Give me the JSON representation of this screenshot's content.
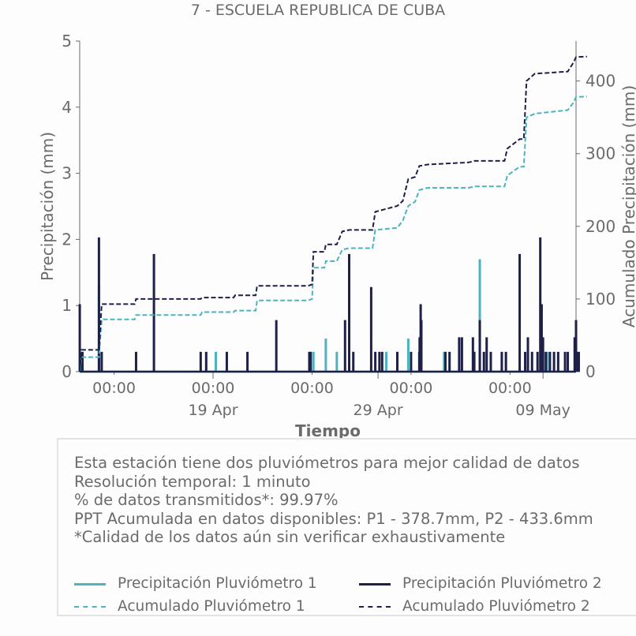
{
  "title": "7 - ESCUELA REPUBLICA DE CUBA",
  "info_lines": [
    "Esta estación tiene dos pluviómetros para mejor calidad de datos",
    "Resolución temporal: 1 minuto",
    "% de datos transmitidos*: 99.97%",
    "PPT Acumulada en datos disponibles: P1 - 378.7mm, P2 - 433.6mm",
    "*Calidad de los datos aún sin verificar exhaustivamente"
  ],
  "legend": [
    {
      "label": "Precipitación Pluviómetro 1",
      "color": "#4bb4bf",
      "dashed": false
    },
    {
      "label": "Precipitación Pluviómetro 2",
      "color": "#1e2047",
      "dashed": false
    },
    {
      "label": "Acumulado Pluviómetro 1",
      "color": "#4bb4bf",
      "dashed": true
    },
    {
      "label": "Acumulado Pluviómetro 2",
      "color": "#1e2047",
      "dashed": true
    }
  ],
  "colors": {
    "p1": "#4bb4bf",
    "p2": "#1e2047",
    "axis": "#6b6b6b",
    "text": "#6b6b6b"
  },
  "chart_data": {
    "type": "line",
    "title": "7 - ESCUELA REPUBLICA DE CUBA",
    "xlabel": "Tiempo",
    "ylabel": "Precipitación (mm)",
    "y2label": "Acumulado Precipitación (mm)",
    "xlim": [
      "2025-04-10T22:00",
      "2025-05-11T00:00"
    ],
    "ylim": [
      0,
      5
    ],
    "y2lim": [
      0,
      455
    ],
    "yticks": [
      0,
      1,
      2,
      3,
      4,
      5
    ],
    "y2ticks": [
      0,
      100,
      200,
      300,
      400
    ],
    "x_minor_ticks": [
      {
        "t": "2025-04-13T00:00",
        "label": "00:00"
      },
      {
        "t": "2025-04-19T00:00",
        "label": "00:00"
      },
      {
        "t": "2025-04-25T00:00",
        "label": "00:00"
      },
      {
        "t": "2025-05-01T00:00",
        "label": "00:00"
      },
      {
        "t": "2025-05-07T00:00",
        "label": "00:00"
      }
    ],
    "x_major_ticks": [
      {
        "t": "2025-04-19T00:00",
        "label": "19 Apr"
      },
      {
        "t": "2025-04-29T00:00",
        "label": "29 Apr"
      },
      {
        "t": "2025-05-09T00:00",
        "label": "09 May"
      }
    ],
    "grid": false,
    "series": [
      {
        "name": "Precipitación Pluviómetro 1",
        "axis": "left",
        "style": "solid",
        "points": [
          [
            "2025-04-11T01:00",
            0.3
          ],
          [
            "2025-04-12T02:00",
            1.3
          ],
          [
            "2025-04-19T04:00",
            0.3
          ],
          [
            "2025-04-25T02:00",
            0.3
          ],
          [
            "2025-04-25T20:00",
            0.5
          ],
          [
            "2025-04-26T12:00",
            0.3
          ],
          [
            "2025-04-29T12:00",
            0.3
          ],
          [
            "2025-04-30T20:00",
            0.5
          ],
          [
            "2025-05-03T00:00",
            0.3
          ],
          [
            "2025-05-05T04:00",
            1.7
          ],
          [
            "2025-05-09T06:00",
            0.3
          ]
        ]
      },
      {
        "name": "Precipitación Pluviómetro 2",
        "axis": "left",
        "style": "solid",
        "points": [
          [
            "2025-04-10T22:06",
            1.02
          ],
          [
            "2025-04-11T02:00",
            0.3
          ],
          [
            "2025-04-12T02:00",
            2.03
          ],
          [
            "2025-04-12T06:00",
            0.3
          ],
          [
            "2025-04-14T08:00",
            0.3
          ],
          [
            "2025-04-15T10:00",
            1.78
          ],
          [
            "2025-04-18T06:00",
            0.3
          ],
          [
            "2025-04-18T14:00",
            0.3
          ],
          [
            "2025-04-19T20:00",
            0.3
          ],
          [
            "2025-04-21T02:00",
            0.3
          ],
          [
            "2025-04-22T20:00",
            0.78
          ],
          [
            "2025-04-24T20:00",
            0.3
          ],
          [
            "2025-04-24T22:00",
            0.3
          ],
          [
            "2025-04-27T00:00",
            0.78
          ],
          [
            "2025-04-27T06:00",
            1.78
          ],
          [
            "2025-04-27T12:00",
            0.3
          ],
          [
            "2025-04-28T14:00",
            1.28
          ],
          [
            "2025-04-28T20:00",
            0.3
          ],
          [
            "2025-04-29T02:00",
            0.3
          ],
          [
            "2025-04-29T06:00",
            0.3
          ],
          [
            "2025-04-30T04:00",
            0.3
          ],
          [
            "2025-05-01T00:00",
            0.3
          ],
          [
            "2025-05-01T12:00",
            0.3
          ],
          [
            "2025-05-01T12:30",
            0.52
          ],
          [
            "2025-05-01T14:00",
            1.02
          ],
          [
            "2025-05-01T15:00",
            0.78
          ],
          [
            "2025-05-03T02:00",
            0.3
          ],
          [
            "2025-05-03T08:00",
            0.3
          ],
          [
            "2025-05-03T22:00",
            0.52
          ],
          [
            "2025-05-04T02:00",
            0.52
          ],
          [
            "2025-05-04T18:00",
            0.52
          ],
          [
            "2025-05-04T20:00",
            0.3
          ],
          [
            "2025-05-05T04:00",
            0.78
          ],
          [
            "2025-05-05T10:00",
            0.3
          ],
          [
            "2025-05-05T14:00",
            0.52
          ],
          [
            "2025-05-05T20:00",
            0.3
          ],
          [
            "2025-05-06T12:00",
            0.3
          ],
          [
            "2025-05-06T18:00",
            0.3
          ],
          [
            "2025-05-07T14:00",
            1.78
          ],
          [
            "2025-05-07T22:00",
            0.3
          ],
          [
            "2025-05-08T02:00",
            0.52
          ],
          [
            "2025-05-08T08:00",
            0.3
          ],
          [
            "2025-05-08T16:00",
            0.3
          ],
          [
            "2025-05-08T20:00",
            2.03
          ],
          [
            "2025-05-08T22:00",
            1.02
          ],
          [
            "2025-05-09T00:00",
            0.52
          ],
          [
            "2025-05-09T04:00",
            0.3
          ],
          [
            "2025-05-09T10:00",
            0.3
          ],
          [
            "2025-05-09T16:00",
            0.3
          ],
          [
            "2025-05-09T22:00",
            0.3
          ],
          [
            "2025-05-10T08:00",
            0.3
          ],
          [
            "2025-05-10T12:00",
            0.3
          ],
          [
            "2025-05-10T22:00",
            0.52
          ],
          [
            "2025-05-11T00:00",
            0.78
          ],
          [
            "2025-05-11T02:00",
            0.3
          ],
          [
            "2025-05-11T04:00",
            0.3
          ]
        ]
      },
      {
        "name": "Acumulado Pluviómetro 1",
        "axis": "right",
        "style": "dashed",
        "points": [
          [
            "2025-04-10T22:00",
            0
          ],
          [
            "2025-04-11T01:00",
            20
          ],
          [
            "2025-04-12T02:00",
            20
          ],
          [
            "2025-04-12T06:00",
            72
          ],
          [
            "2025-04-14T06:00",
            72
          ],
          [
            "2025-04-14T08:00",
            78
          ],
          [
            "2025-04-18T06:00",
            78
          ],
          [
            "2025-04-18T08:00",
            82
          ],
          [
            "2025-04-20T06:00",
            82
          ],
          [
            "2025-04-20T08:00",
            84
          ],
          [
            "2025-04-21T14:00",
            84
          ],
          [
            "2025-04-21T16:00",
            98
          ],
          [
            "2025-04-24T18:00",
            98
          ],
          [
            "2025-04-25T00:00",
            100
          ],
          [
            "2025-04-25T02:00",
            143
          ],
          [
            "2025-04-25T18:00",
            143
          ],
          [
            "2025-04-25T20:00",
            152
          ],
          [
            "2025-04-26T12:00",
            152
          ],
          [
            "2025-04-26T20:00",
            168
          ],
          [
            "2025-04-27T06:00",
            170
          ],
          [
            "2025-04-28T16:00",
            170
          ],
          [
            "2025-04-28T20:00",
            195
          ],
          [
            "2025-04-30T04:00",
            198
          ],
          [
            "2025-04-30T12:00",
            208
          ],
          [
            "2025-04-30T20:00",
            228
          ],
          [
            "2025-05-01T06:00",
            234
          ],
          [
            "2025-05-01T12:00",
            250
          ],
          [
            "2025-05-02T00:00",
            253
          ],
          [
            "2025-05-04T12:00",
            253
          ],
          [
            "2025-05-04T20:00",
            255
          ],
          [
            "2025-05-06T16:00",
            255
          ],
          [
            "2025-05-06T20:00",
            270
          ],
          [
            "2025-05-07T14:00",
            282
          ],
          [
            "2025-05-07T20:00",
            282
          ],
          [
            "2025-05-08T00:00",
            350
          ],
          [
            "2025-05-08T12:00",
            355
          ],
          [
            "2025-05-10T12:00",
            360
          ],
          [
            "2025-05-10T20:00",
            370
          ],
          [
            "2025-05-11T00:00",
            378
          ],
          [
            "2025-05-11T16:00",
            378.7
          ]
        ]
      },
      {
        "name": "Acumulado Pluviómetro 2",
        "axis": "right",
        "style": "dashed",
        "points": [
          [
            "2025-04-10T22:00",
            0
          ],
          [
            "2025-04-11T01:00",
            30
          ],
          [
            "2025-04-12T02:00",
            30
          ],
          [
            "2025-04-12T06:00",
            93
          ],
          [
            "2025-04-14T06:00",
            93
          ],
          [
            "2025-04-14T08:00",
            100
          ],
          [
            "2025-04-18T06:00",
            100
          ],
          [
            "2025-04-18T08:00",
            102
          ],
          [
            "2025-04-20T06:00",
            102
          ],
          [
            "2025-04-20T08:00",
            105
          ],
          [
            "2025-04-21T14:00",
            105
          ],
          [
            "2025-04-21T16:00",
            118
          ],
          [
            "2025-04-24T18:00",
            118
          ],
          [
            "2025-04-25T00:00",
            120
          ],
          [
            "2025-04-25T02:00",
            165
          ],
          [
            "2025-04-25T18:00",
            165
          ],
          [
            "2025-04-25T20:00",
            175
          ],
          [
            "2025-04-26T12:00",
            175
          ],
          [
            "2025-04-26T20:00",
            193
          ],
          [
            "2025-04-27T06:00",
            195
          ],
          [
            "2025-04-28T16:00",
            195
          ],
          [
            "2025-04-28T20:00",
            220
          ],
          [
            "2025-04-30T04:00",
            228
          ],
          [
            "2025-04-30T12:00",
            235
          ],
          [
            "2025-04-30T20:00",
            265
          ],
          [
            "2025-05-01T06:00",
            268
          ],
          [
            "2025-05-01T12:00",
            283
          ],
          [
            "2025-05-02T00:00",
            285
          ],
          [
            "2025-05-04T12:00",
            288
          ],
          [
            "2025-05-04T20:00",
            290
          ],
          [
            "2025-05-06T16:00",
            290
          ],
          [
            "2025-05-06T20:00",
            307
          ],
          [
            "2025-05-07T14:00",
            320
          ],
          [
            "2025-05-07T20:00",
            320
          ],
          [
            "2025-05-08T00:00",
            400
          ],
          [
            "2025-05-08T12:00",
            410
          ],
          [
            "2025-05-10T12:00",
            413
          ],
          [
            "2025-05-10T20:00",
            425
          ],
          [
            "2025-05-11T00:00",
            433
          ],
          [
            "2025-05-11T16:00",
            433.6
          ]
        ]
      }
    ]
  }
}
